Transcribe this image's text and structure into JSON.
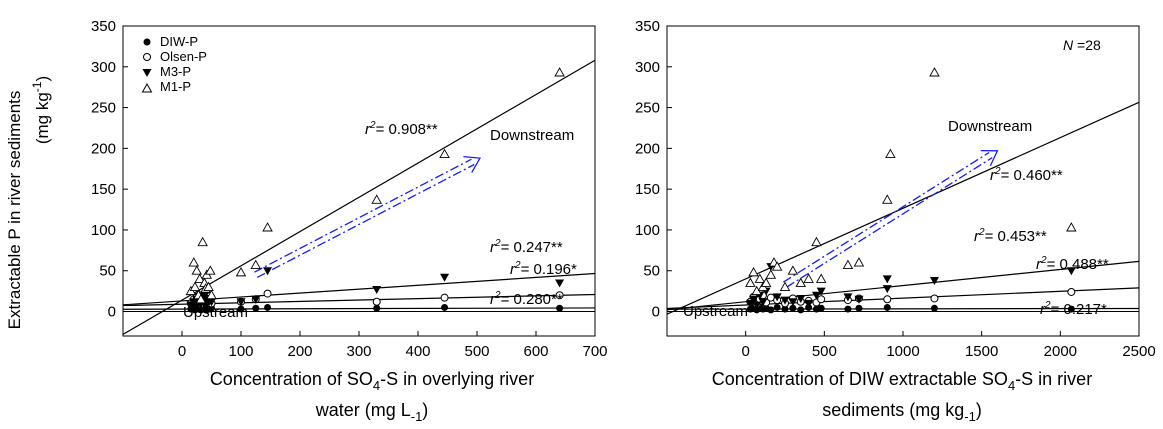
{
  "figure": {
    "ylabel_line1": "Extractable P in river sediments",
    "ylabel_line2": "(mg kg",
    "ylabel_line2_sup": "-1",
    "ylabel_line2_end": ")"
  },
  "chart_data": [
    {
      "type": "scatter",
      "xlabel_line1_a": "Concentration of SO",
      "xlabel_line1_sub": "4",
      "xlabel_line1_b": "-S in overlying river",
      "xlabel_line2_a": "water (mg L",
      "xlabel_line2_sup": "-1",
      "xlabel_line2_b": ")",
      "xlim": [
        -100,
        700
      ],
      "ylim": [
        -30,
        350
      ],
      "xticks": [
        0,
        100,
        200,
        300,
        400,
        500,
        600,
        700
      ],
      "yticks": [
        0,
        50,
        100,
        150,
        200,
        250,
        300,
        350
      ],
      "legend": [
        "DIW-P",
        "Olsen-P",
        "M3-P",
        "M1-P"
      ],
      "legend_position": "top-left",
      "series": [
        {
          "name": "DIW-P",
          "marker": "filled-circle",
          "points": [
            [
              15,
              3
            ],
            [
              20,
              4
            ],
            [
              22,
              2
            ],
            [
              25,
              5
            ],
            [
              28,
              3
            ],
            [
              30,
              4
            ],
            [
              32,
              2
            ],
            [
              35,
              6
            ],
            [
              38,
              3
            ],
            [
              40,
              4
            ],
            [
              42,
              2
            ],
            [
              45,
              5
            ],
            [
              48,
              3
            ],
            [
              50,
              4
            ],
            [
              100,
              3
            ],
            [
              125,
              4
            ],
            [
              145,
              5
            ],
            [
              330,
              4
            ],
            [
              445,
              5
            ],
            [
              640,
              4
            ]
          ]
        },
        {
          "name": "Olsen-P",
          "marker": "open-circle",
          "points": [
            [
              15,
              10
            ],
            [
              20,
              15
            ],
            [
              22,
              8
            ],
            [
              25,
              18
            ],
            [
              28,
              12
            ],
            [
              30,
              20
            ],
            [
              32,
              9
            ],
            [
              35,
              14
            ],
            [
              38,
              22
            ],
            [
              40,
              11
            ],
            [
              42,
              16
            ],
            [
              45,
              13
            ],
            [
              48,
              19
            ],
            [
              50,
              10
            ],
            [
              100,
              12
            ],
            [
              125,
              15
            ],
            [
              145,
              22
            ],
            [
              330,
              12
            ],
            [
              445,
              17
            ],
            [
              640,
              20
            ]
          ]
        },
        {
          "name": "M3-P",
          "marker": "filled-triangle-down",
          "points": [
            [
              15,
              8
            ],
            [
              20,
              12
            ],
            [
              22,
              6
            ],
            [
              25,
              15
            ],
            [
              28,
              10
            ],
            [
              30,
              18
            ],
            [
              32,
              9
            ],
            [
              35,
              13
            ],
            [
              38,
              20
            ],
            [
              40,
              7
            ],
            [
              42,
              14
            ],
            [
              45,
              11
            ],
            [
              48,
              16
            ],
            [
              50,
              12
            ],
            [
              100,
              12
            ],
            [
              125,
              15
            ],
            [
              145,
              50
            ],
            [
              330,
              27
            ],
            [
              445,
              42
            ],
            [
              640,
              35
            ]
          ]
        },
        {
          "name": "M1-P",
          "marker": "open-triangle-up",
          "points": [
            [
              15,
              25
            ],
            [
              20,
              60
            ],
            [
              22,
              30
            ],
            [
              25,
              50
            ],
            [
              28,
              20
            ],
            [
              30,
              40
            ],
            [
              32,
              15
            ],
            [
              35,
              85
            ],
            [
              38,
              35
            ],
            [
              40,
              28
            ],
            [
              42,
              45
            ],
            [
              45,
              30
            ],
            [
              48,
              50
            ],
            [
              50,
              20
            ],
            [
              100,
              48
            ],
            [
              125,
              57
            ],
            [
              145,
              103
            ],
            [
              330,
              137
            ],
            [
              445,
              193
            ],
            [
              640,
              293
            ]
          ]
        }
      ],
      "fits": [
        {
          "name": "M1-P",
          "slope": 0.42,
          "intercept": 14
        },
        {
          "name": "M3-P",
          "slope": 0.048,
          "intercept": 13
        },
        {
          "name": "Olsen-P",
          "slope": 0.017,
          "intercept": 9
        },
        {
          "name": "DIW-P",
          "slope": 0.002,
          "intercept": 3
        }
      ],
      "arrow": {
        "from": [
          125,
          45
        ],
        "to": [
          505,
          188
        ]
      },
      "annotations": {
        "r2_m1": "= 0.908**",
        "r2_m3": "= 0.247**",
        "r2_olsen": "= 0.196*",
        "r2_diw": "= 0.280**",
        "r2_prefix": "r",
        "r2_sup": "2",
        "downstream": "Downstream",
        "upstream": "Upstream"
      }
    },
    {
      "type": "scatter",
      "xlabel_line1": "Concentration of DIW extractable SO",
      "xlabel_line1_sub": "4",
      "xlabel_line1_b": "-S in  river",
      "xlabel_line2_a": "sediments (mg kg",
      "xlabel_line2_sup": "-1",
      "xlabel_line2_b": ")",
      "xlim": [
        -500,
        2500
      ],
      "ylim": [
        -30,
        350
      ],
      "xticks": [
        0,
        500,
        1000,
        1500,
        2000,
        2500
      ],
      "yticks": [
        0,
        50,
        100,
        150,
        200,
        250,
        300,
        350
      ],
      "n_label_italic": "N",
      "n_label": " =28",
      "series": [
        {
          "name": "DIW-P",
          "marker": "filled-circle",
          "points": [
            [
              30,
              3
            ],
            [
              50,
              4
            ],
            [
              70,
              2
            ],
            [
              90,
              5
            ],
            [
              110,
              3
            ],
            [
              130,
              4
            ],
            [
              160,
              2
            ],
            [
              200,
              5
            ],
            [
              250,
              3
            ],
            [
              300,
              4
            ],
            [
              350,
              2
            ],
            [
              400,
              5
            ],
            [
              450,
              3
            ],
            [
              480,
              4
            ],
            [
              650,
              3
            ],
            [
              720,
              4
            ],
            [
              900,
              5
            ],
            [
              1200,
              4
            ],
            [
              2070,
              3
            ]
          ]
        },
        {
          "name": "Olsen-P",
          "marker": "open-circle",
          "points": [
            [
              30,
              12
            ],
            [
              50,
              18
            ],
            [
              70,
              9
            ],
            [
              90,
              15
            ],
            [
              110,
              20
            ],
            [
              130,
              11
            ],
            [
              160,
              17
            ],
            [
              200,
              14
            ],
            [
              250,
              10
            ],
            [
              300,
              16
            ],
            [
              350,
              12
            ],
            [
              400,
              13
            ],
            [
              450,
              11
            ],
            [
              480,
              15
            ],
            [
              650,
              14
            ],
            [
              720,
              16
            ],
            [
              900,
              15
            ],
            [
              1200,
              16
            ],
            [
              2070,
              24
            ]
          ]
        },
        {
          "name": "M3-P",
          "marker": "filled-triangle-down",
          "points": [
            [
              30,
              10
            ],
            [
              50,
              15
            ],
            [
              70,
              8
            ],
            [
              90,
              20
            ],
            [
              110,
              12
            ],
            [
              130,
              25
            ],
            [
              160,
              55
            ],
            [
              200,
              18
            ],
            [
              250,
              14
            ],
            [
              300,
              12
            ],
            [
              350,
              16
            ],
            [
              400,
              10
            ],
            [
              450,
              20
            ],
            [
              480,
              25
            ],
            [
              650,
              18
            ],
            [
              720,
              15
            ],
            [
              900,
              28
            ],
            [
              900,
              40
            ],
            [
              1200,
              38
            ],
            [
              2070,
              50
            ]
          ]
        },
        {
          "name": "M1-P",
          "marker": "open-triangle-up",
          "points": [
            [
              30,
              35
            ],
            [
              50,
              48
            ],
            [
              70,
              25
            ],
            [
              90,
              40
            ],
            [
              110,
              30
            ],
            [
              130,
              35
            ],
            [
              160,
              45
            ],
            [
              180,
              60
            ],
            [
              200,
              55
            ],
            [
              250,
              30
            ],
            [
              300,
              50
            ],
            [
              350,
              35
            ],
            [
              400,
              40
            ],
            [
              450,
              85
            ],
            [
              480,
              40
            ],
            [
              650,
              57
            ],
            [
              720,
              60
            ],
            [
              900,
              137
            ],
            [
              920,
              193
            ],
            [
              1200,
              293
            ],
            [
              2070,
              103
            ]
          ]
        }
      ],
      "fits": [
        {
          "name": "M1-P",
          "slope": 0.0866,
          "intercept": 40
        },
        {
          "name": "M3-P",
          "slope": 0.0198,
          "intercept": 12
        },
        {
          "name": "Olsen-P",
          "slope": 0.0084,
          "intercept": 8
        },
        {
          "name": "DIW-P",
          "slope": 0.0003,
          "intercept": 3
        }
      ],
      "arrow": {
        "from": [
          250,
          33
        ],
        "to": [
          1600,
          197
        ]
      },
      "annotations": {
        "r2_m1": "= 0.460**",
        "r2_m3": "= 0.453**",
        "r2_olsen": "= 0.488**",
        "r2_diw": "= 0.217*",
        "r2_prefix": "r",
        "r2_sup": "2",
        "downstream": "Downstream",
        "upstream": "Upstream"
      }
    }
  ]
}
